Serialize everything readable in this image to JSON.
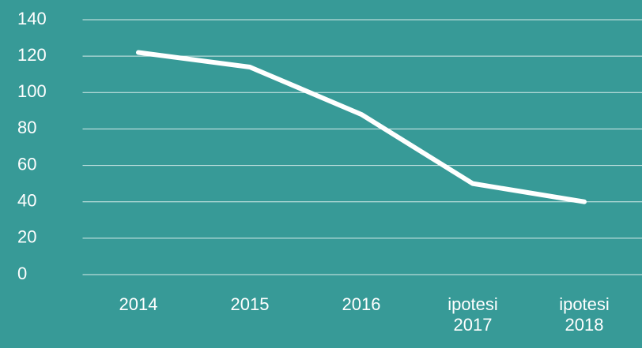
{
  "chart_data": {
    "type": "line",
    "categories": [
      "2014",
      "2015",
      "2016",
      "ipotesi 2017",
      "ipotesi 2018"
    ],
    "series": [
      {
        "color": "#ffffff",
        "values": [
          122,
          114,
          88,
          50,
          40
        ]
      }
    ],
    "ylim": [
      0,
      140
    ],
    "yticks": [
      0,
      20,
      40,
      60,
      80,
      100,
      120,
      140
    ],
    "grid": true
  }
}
